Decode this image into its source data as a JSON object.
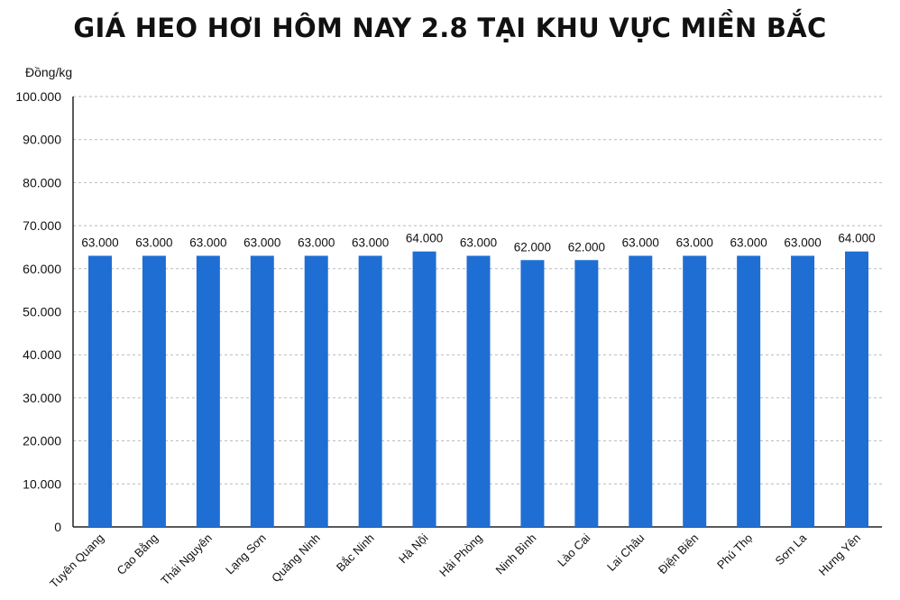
{
  "chart_data": {
    "type": "bar",
    "title": "GIÁ HEO HƠI HÔM NAY 2.8 TẠI KHU VỰC MIỀN BẮC",
    "ylabel": "Đồng/kg",
    "xlabel": "",
    "ylim": [
      0,
      100000
    ],
    "grid": true,
    "bar_color": "#1f6ed4",
    "yticks": [
      {
        "value": 0,
        "label": "0"
      },
      {
        "value": 10000,
        "label": "10.000"
      },
      {
        "value": 20000,
        "label": "20.000"
      },
      {
        "value": 30000,
        "label": "30.000"
      },
      {
        "value": 40000,
        "label": "40.000"
      },
      {
        "value": 50000,
        "label": "50.000"
      },
      {
        "value": 60000,
        "label": "60.000"
      },
      {
        "value": 70000,
        "label": "70.000"
      },
      {
        "value": 80000,
        "label": "80.000"
      },
      {
        "value": 90000,
        "label": "90.000"
      },
      {
        "value": 100000,
        "label": "100.000"
      }
    ],
    "categories": [
      "Tuyên Quang",
      "Cao Bằng",
      "Thái Nguyên",
      "Lạng Sơn",
      "Quảng Ninh",
      "Bắc Ninh",
      "Hà Nội",
      "Hải Phòng",
      "Ninh Bình",
      "Lào Cai",
      "Lai Châu",
      "Điện Biên",
      "Phú Thọ",
      "Sơn La",
      "Hưng Yên"
    ],
    "values": [
      63000,
      63000,
      63000,
      63000,
      63000,
      63000,
      64000,
      63000,
      62000,
      62000,
      63000,
      63000,
      63000,
      63000,
      64000
    ],
    "data_labels": [
      "63.000",
      "63.000",
      "63.000",
      "63.000",
      "63.000",
      "63.000",
      "64.000",
      "63.000",
      "62.000",
      "62.000",
      "63.000",
      "63.000",
      "63.000",
      "63.000",
      "64.000"
    ]
  }
}
